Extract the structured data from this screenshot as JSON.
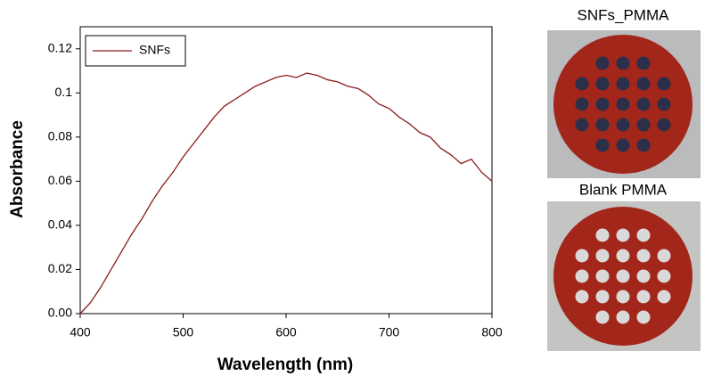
{
  "chart_data": {
    "type": "line",
    "xlabel": "Wavelength (nm)",
    "ylabel": "Absorbance",
    "x": [
      400,
      410,
      420,
      430,
      440,
      450,
      460,
      470,
      480,
      490,
      500,
      510,
      520,
      530,
      540,
      550,
      560,
      570,
      580,
      590,
      600,
      610,
      620,
      630,
      640,
      650,
      660,
      670,
      680,
      690,
      700,
      710,
      720,
      730,
      740,
      750,
      760,
      770,
      780,
      790,
      800
    ],
    "series": [
      {
        "name": "SNFs",
        "color": "#8b1a1a",
        "values": [
          0,
          0.005,
          0.012,
          0.02,
          0.028,
          0.036,
          0.043,
          0.051,
          0.058,
          0.064,
          0.071,
          0.077,
          0.083,
          0.089,
          0.094,
          0.097,
          0.1,
          0.103,
          0.105,
          0.107,
          0.108,
          0.107,
          0.109,
          0.108,
          0.106,
          0.105,
          0.103,
          0.102,
          0.099,
          0.095,
          0.093,
          0.089,
          0.086,
          0.082,
          0.08,
          0.075,
          0.072,
          0.068,
          0.07,
          0.064,
          0.06
        ]
      }
    ],
    "xlim": [
      400,
      800
    ],
    "ylim": [
      0,
      0.13
    ],
    "xticks": [
      400,
      500,
      600,
      700,
      800
    ],
    "yticks": [
      {
        "value": 0,
        "label": "0.00"
      },
      {
        "value": 0.02,
        "label": "0.02"
      },
      {
        "value": 0.04,
        "label": "0.04"
      },
      {
        "value": 0.06,
        "label": "0.06"
      },
      {
        "value": 0.08,
        "label": "0.08"
      },
      0.1,
      {
        "value": 0.12,
        "label": "0.12"
      }
    ],
    "legend": "upper left",
    "annotations": [
      "SNFs_PMMA",
      "Blank PMMA"
    ]
  }
}
